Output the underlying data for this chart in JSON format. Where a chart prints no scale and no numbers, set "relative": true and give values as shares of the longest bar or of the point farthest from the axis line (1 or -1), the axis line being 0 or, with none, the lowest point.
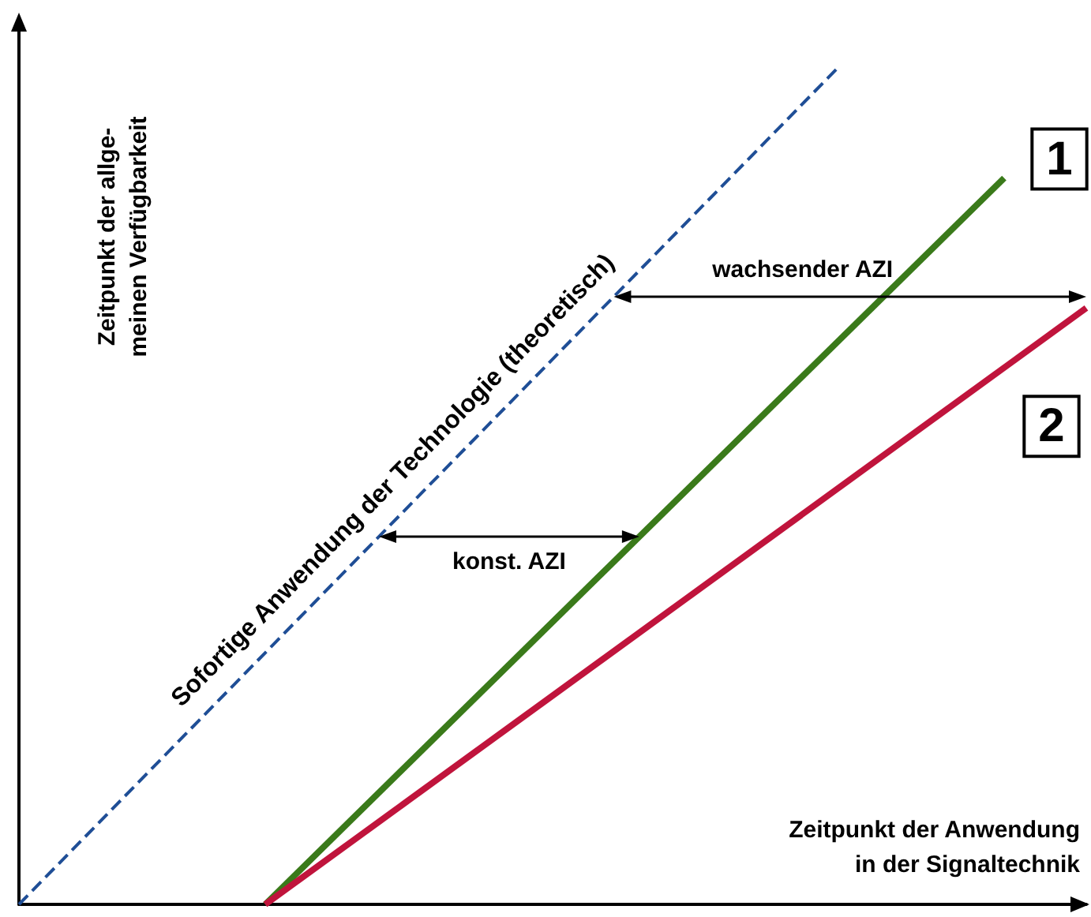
{
  "chart_data": {
    "type": "line",
    "relative": true,
    "grid": false,
    "legend": false,
    "xlabel": "Zeitpunkt der Anwendung\nin der Signaltechnik",
    "ylabel": "Zeitpunkt der allge-\nmeinen Verfügbarkeit",
    "categories": [
      null,
      null,
      null,
      null,
      null,
      null,
      null,
      null,
      null,
      null,
      null,
      null,
      null,
      null
    ],
    "series": [
      {
        "name": "Sofortige Anwendung der Technologie (theoretisch)",
        "color": "#1f4e96",
        "line_style": "dashed",
        "values": [
          0,
          null,
          null,
          null,
          null,
          null,
          null,
          null,
          null,
          null,
          1,
          null,
          null,
          null
        ]
      },
      {
        "name": "1",
        "color": "#3a7a1a",
        "line_style": "solid",
        "values": [
          null,
          null,
          null,
          0,
          null,
          null,
          null,
          null,
          null,
          null,
          null,
          null,
          0.866,
          null
        ]
      },
      {
        "name": "2",
        "color": "#c0143c",
        "line_style": "solid",
        "values": [
          null,
          null,
          null,
          0,
          null,
          null,
          null,
          null,
          null,
          null,
          null,
          null,
          null,
          0.711
        ]
      }
    ],
    "annotations": [
      "konst. AZI",
      "wachsender AZI"
    ]
  }
}
